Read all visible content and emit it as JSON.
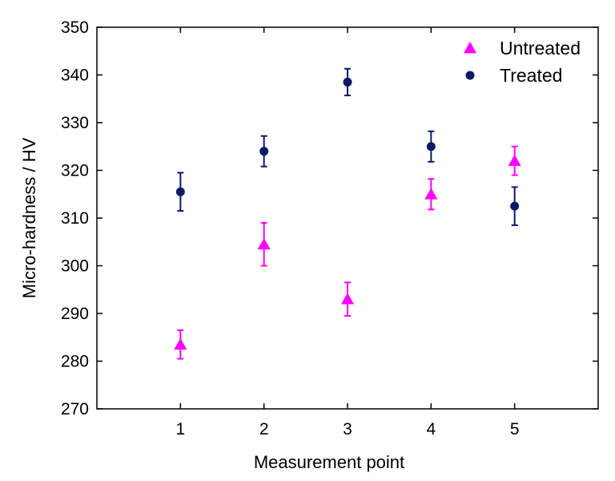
{
  "chart_data": {
    "type": "scatter",
    "xlabel": "Measurement point",
    "ylabel": "Micro-hardness / HV",
    "xlim": [
      0,
      6
    ],
    "ylim": [
      270,
      350
    ],
    "x_ticks": [
      "1",
      "2",
      "3",
      "4",
      "5"
    ],
    "y_ticks": [
      "270",
      "280",
      "290",
      "300",
      "310",
      "320",
      "330",
      "340",
      "350"
    ],
    "grid": false,
    "legend_position": "top-right",
    "series": [
      {
        "name": "Untreated",
        "marker": "triangle",
        "color": "#ff00ff",
        "x": [
          1,
          2,
          3,
          4,
          5
        ],
        "y": [
          283.5,
          304.5,
          293.0,
          315.0,
          322.0
        ],
        "error": [
          3.0,
          4.5,
          3.5,
          3.2,
          3.0
        ]
      },
      {
        "name": "Treated",
        "marker": "circle",
        "color": "#0d1a66",
        "x": [
          1,
          2,
          3,
          4,
          5
        ],
        "y": [
          315.5,
          324.0,
          338.5,
          325.0,
          312.5
        ],
        "error": [
          4.0,
          3.2,
          2.8,
          3.2,
          4.0
        ]
      }
    ]
  }
}
